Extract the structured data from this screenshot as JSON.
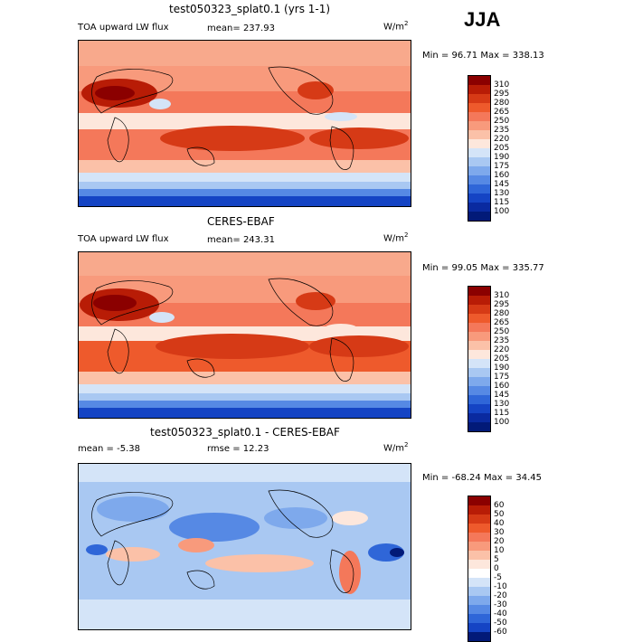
{
  "season": "JJA",
  "panels": [
    {
      "title": "test050323_splat0.1 (yrs 1-1)",
      "left_label": "TOA upward LW flux",
      "stat_label": "mean=",
      "stat_value": "237.93",
      "units_base": "W/m",
      "units_exp": "2",
      "min_label": "Min =",
      "min_value": "96.71",
      "max_label": "Max =",
      "max_value": "338.13",
      "colorbar_labels": [
        "310",
        "295",
        "280",
        "265",
        "250",
        "235",
        "220",
        "205",
        "190",
        "175",
        "160",
        "145",
        "130",
        "115",
        "100"
      ]
    },
    {
      "title": "CERES-EBAF",
      "left_label": "TOA upward LW flux",
      "stat_label": "mean=",
      "stat_value": "243.31",
      "units_base": "W/m",
      "units_exp": "2",
      "min_label": "Min =",
      "min_value": "99.05",
      "max_label": "Max =",
      "max_value": "335.77",
      "colorbar_labels": [
        "310",
        "295",
        "280",
        "265",
        "250",
        "235",
        "220",
        "205",
        "190",
        "175",
        "160",
        "145",
        "130",
        "115",
        "100"
      ]
    },
    {
      "title": "test050323_splat0.1 - CERES-EBAF",
      "left_label": "mean =",
      "left_value": "-5.38",
      "stat_label": "rmse =",
      "stat_value": "12.23",
      "units_base": "W/m",
      "units_exp": "2",
      "min_label": "Min =",
      "min_value": "-68.24",
      "max_label": "Max =",
      "max_value": "34.45",
      "colorbar_labels": [
        "60",
        "50",
        "40",
        "30",
        "20",
        "10",
        "5",
        "0",
        "-5",
        "-10",
        "-20",
        "-30",
        "-40",
        "-50",
        "-60"
      ]
    }
  ],
  "colors": {
    "abs_scale": [
      "#8b0000",
      "#b81c06",
      "#d63a16",
      "#ee5a2c",
      "#f4785a",
      "#f89a7c",
      "#fbc1a8",
      "#fde7dc",
      "#d4e4f8",
      "#a9c8f2",
      "#7ea9ec",
      "#5689e4",
      "#2f66d8",
      "#1544c4",
      "#0a2aa0",
      "#021a78"
    ],
    "diff_scale": [
      "#8b0000",
      "#b81c06",
      "#d63a16",
      "#ee5a2c",
      "#f4785a",
      "#f89a7c",
      "#fbc1a8",
      "#fde7dc",
      "#ffffff",
      "#d4e4f8",
      "#a9c8f2",
      "#7ea9ec",
      "#5689e4",
      "#2f66d8",
      "#1544c4",
      "#021a78"
    ]
  }
}
